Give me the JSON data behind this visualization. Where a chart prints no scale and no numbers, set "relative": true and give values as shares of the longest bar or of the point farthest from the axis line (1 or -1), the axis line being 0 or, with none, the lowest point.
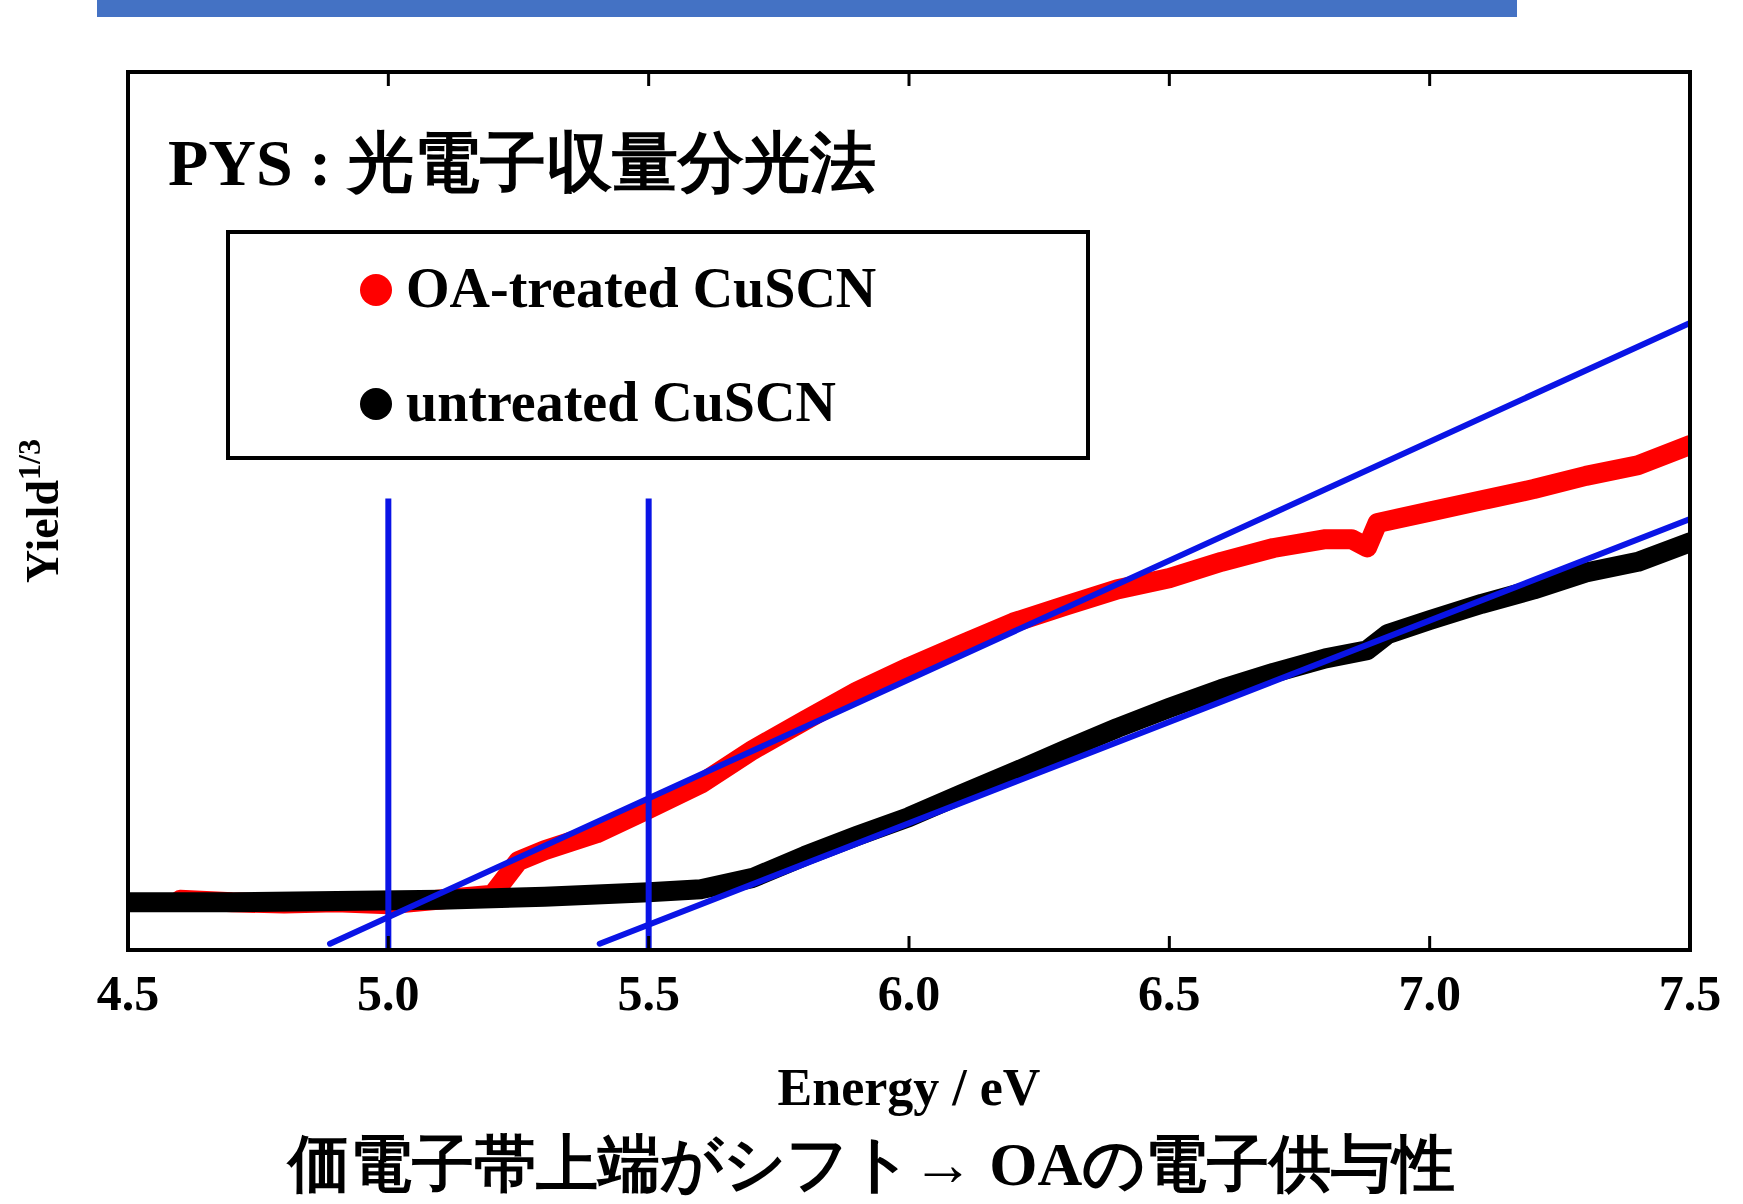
{
  "chart_data": {
    "type": "line",
    "title": "PYS : 光電子収量分光法",
    "xlabel": "Energy / eV",
    "ylabel": "Yield$^{1/3}$",
    "relative": true,
    "legend": "top left",
    "annotations": [
      "価電子帯上端がシフト→ OAの電子供与性"
    ],
    "xlim": [
      4.5,
      7.5
    ],
    "xticks": [
      4.5,
      {
        "value": 5,
        "label": "5.0"
      },
      5.5,
      {
        "value": 6,
        "label": "6.0"
      },
      6.5,
      {
        "value": 7,
        "label": "7.0"
      },
      7.5
    ],
    "ref_lines": [
      {
        "axis": "x",
        "value": 5,
        "color": "#0a14e6"
      },
      {
        "axis": "x",
        "value": 5.5,
        "color": "#0a14e6"
      }
    ],
    "series": [
      {
        "name": "OA-treated CuSCN",
        "color": "#ff0000",
        "x": [
          4.6,
          4.7,
          4.8,
          4.9,
          5.0,
          5.2,
          5.25,
          5.3,
          5.4,
          5.5,
          5.6,
          5.7,
          5.8,
          5.9,
          6.0,
          6.1,
          6.2,
          6.3,
          6.4,
          6.5,
          6.6,
          6.7,
          6.8,
          6.85,
          6.88,
          6.9,
          7.0,
          7.1,
          7.2,
          7.3,
          7.4,
          7.5
        ],
        "values": [
          0.08,
          0.076,
          0.074,
          0.076,
          0.073,
          0.088,
          0.142,
          0.159,
          0.186,
          0.225,
          0.265,
          0.319,
          0.366,
          0.412,
          0.451,
          0.487,
          0.522,
          0.549,
          0.575,
          0.593,
          0.619,
          0.641,
          0.655,
          0.655,
          0.642,
          0.681,
          0.699,
          0.717,
          0.735,
          0.756,
          0.773,
          0.805
        ]
      },
      {
        "name": "untreated CuSCN",
        "color": "#000000",
        "x": [
          4.5,
          4.7,
          4.9,
          5.1,
          5.3,
          5.5,
          5.6,
          5.7,
          5.8,
          5.9,
          6.0,
          6.1,
          6.2,
          6.3,
          6.4,
          6.5,
          6.6,
          6.7,
          6.8,
          6.88,
          6.92,
          7.0,
          7.1,
          7.2,
          7.3,
          7.4,
          7.5
        ],
        "values": [
          0.076,
          0.076,
          0.078,
          0.08,
          0.085,
          0.092,
          0.097,
          0.115,
          0.15,
          0.182,
          0.212,
          0.248,
          0.283,
          0.319,
          0.354,
          0.386,
          0.416,
          0.442,
          0.465,
          0.478,
          0.504,
          0.526,
          0.552,
          0.575,
          0.602,
          0.619,
          0.65
        ]
      },
      {
        "type": "line",
        "color": "#0a14e6",
        "x": [
          4.888,
          7.5
        ],
        "values": [
          0.01,
          1.0
        ]
      },
      {
        "type": "line",
        "color": "#0a14e6",
        "x": [
          5.406,
          7.5
        ],
        "values": [
          0.01,
          0.687
        ]
      }
    ]
  }
}
